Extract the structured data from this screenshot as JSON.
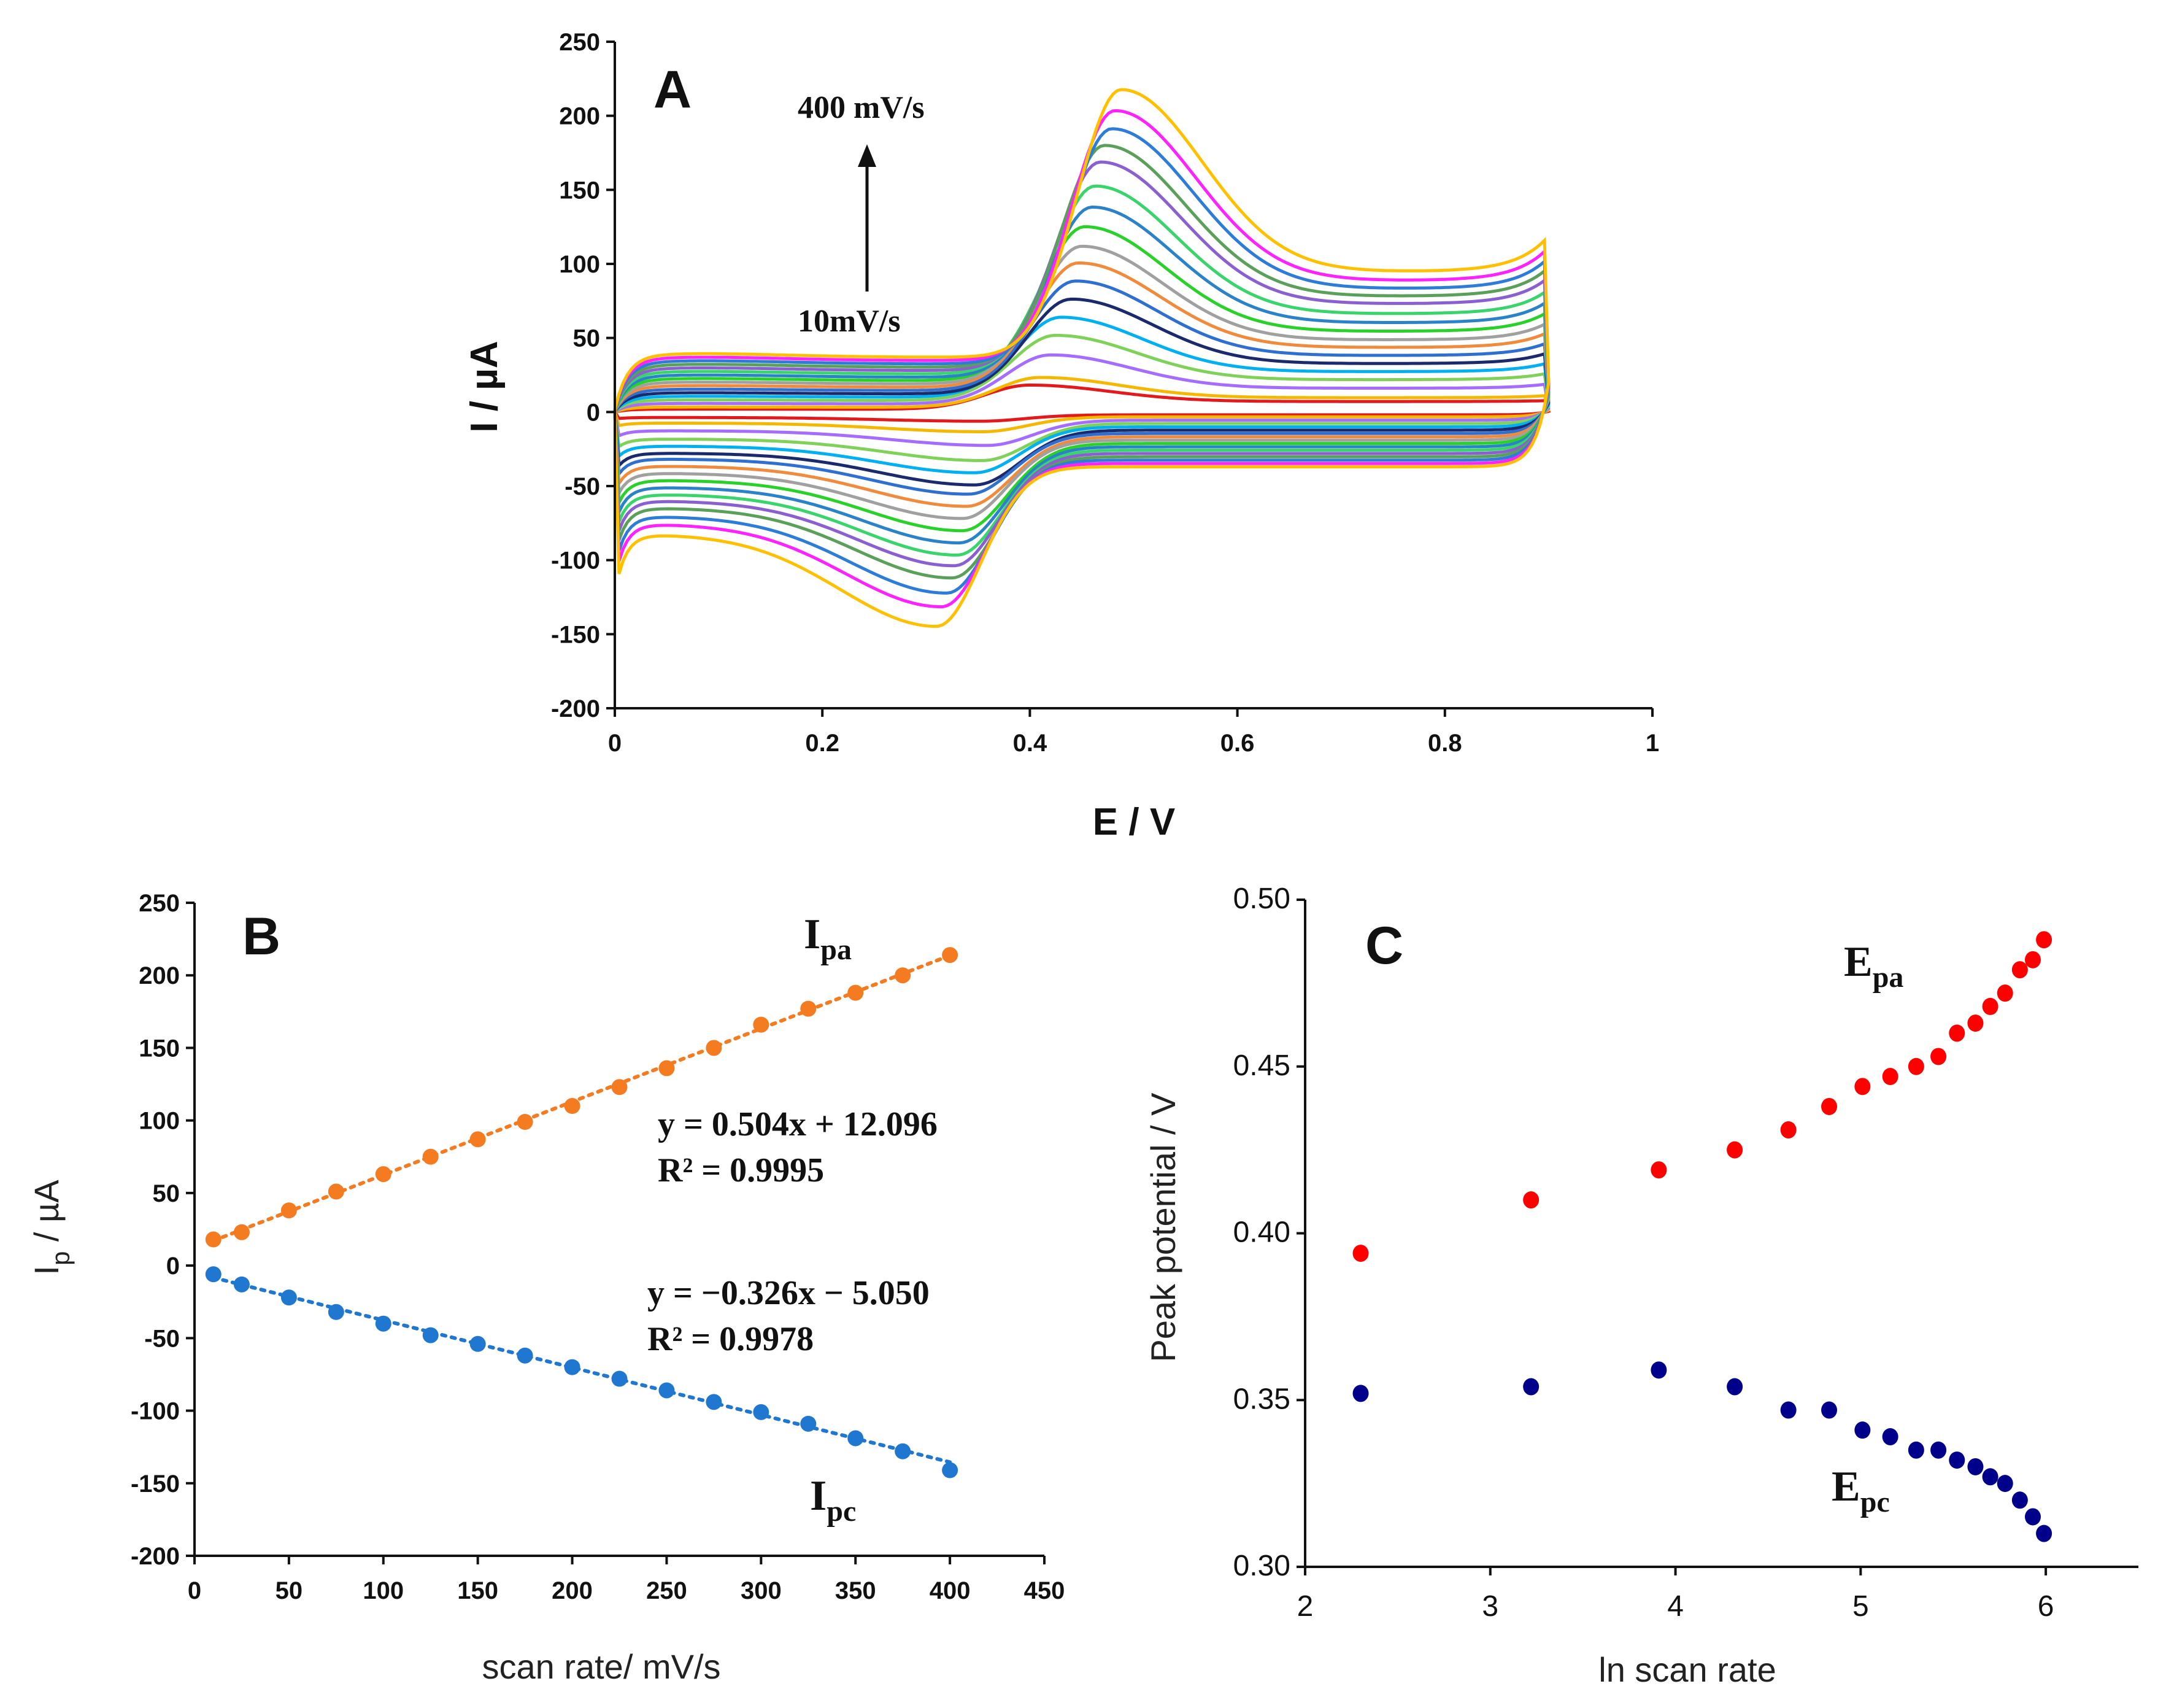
{
  "chart_data": [
    {
      "panel": "A",
      "type": "line",
      "xlabel": "E / V",
      "ylabel": "I / µA",
      "xlim": [
        0,
        1
      ],
      "ylim": [
        -200,
        250
      ],
      "xticks": [
        "0",
        "0.2",
        "0.4",
        "0.6",
        "0.8",
        "1"
      ],
      "yticks": [
        "250",
        "200",
        "150",
        "100",
        "50",
        "0",
        "-50",
        "-100",
        "-150",
        "-200"
      ],
      "annotations": {
        "top": "400 mV/s",
        "bottom": "10mV/s"
      },
      "scan_rates": [
        10,
        25,
        50,
        75,
        100,
        125,
        150,
        175,
        200,
        225,
        250,
        275,
        300,
        325,
        350,
        375,
        400
      ],
      "colors": [
        "#e31a1c",
        "#f5b800",
        "#a46cff",
        "#7fd15a",
        "#00b0f0",
        "#1a2a6c",
        "#2f6fd0",
        "#f08a3c",
        "#a0a0a0",
        "#2bd12b",
        "#2a82c8",
        "#3ad46c",
        "#8a60d0",
        "#5aa05a",
        "#2c7cd8",
        "#ff22ff",
        "#ffc000"
      ],
      "Ipa": [
        18,
        23,
        38,
        51,
        63,
        75,
        87,
        99,
        110,
        123,
        136,
        150,
        166,
        177,
        188,
        200,
        214
      ],
      "Ipc": [
        -6,
        -13,
        -22,
        -32,
        -40,
        -48,
        -54,
        -62,
        -70,
        -78,
        -86,
        -94,
        -101,
        -109,
        -119,
        -128,
        -141
      ],
      "Epa": [
        0.4,
        0.41,
        0.42,
        0.425,
        0.43,
        0.44,
        0.444,
        0.447,
        0.45,
        0.453,
        0.46,
        0.463,
        0.468,
        0.472,
        0.479,
        0.482,
        0.488
      ],
      "Epc": [
        0.352,
        0.354,
        0.359,
        0.354,
        0.347,
        0.347,
        0.341,
        0.339,
        0.335,
        0.335,
        0.332,
        0.33,
        0.327,
        0.325,
        0.32,
        0.315,
        0.31
      ],
      "grid": false
    },
    {
      "panel": "B",
      "type": "scatter",
      "xlabel": "scan rate/ mV/s",
      "ylabel_main": "I",
      "ylabel_sub": "p",
      "ylabel_unit": " / µA",
      "xlim": [
        0,
        450
      ],
      "ylim": [
        -200,
        250
      ],
      "xticks": [
        "0",
        "50",
        "100",
        "150",
        "200",
        "250",
        "300",
        "350",
        "400",
        "450"
      ],
      "yticks": [
        "250",
        "200",
        "150",
        "100",
        "50",
        "0",
        "-50",
        "-100",
        "-150",
        "-200"
      ],
      "x": [
        10,
        25,
        50,
        75,
        100,
        125,
        150,
        175,
        200,
        225,
        250,
        275,
        300,
        325,
        350,
        375,
        400
      ],
      "series": [
        {
          "name": "Ipa",
          "label_main": "I",
          "label_sub": "pa",
          "color": "#f47b20",
          "values": [
            18,
            23,
            38,
            51,
            63,
            75,
            87,
            99,
            110,
            123,
            136,
            150,
            166,
            177,
            188,
            200,
            214
          ],
          "fit": {
            "slope": 0.504,
            "intercept": 12.096,
            "equation": "y = 0.504x + 12.096",
            "r2": "R² = 0.9995"
          }
        },
        {
          "name": "Ipc",
          "label_main": "I",
          "label_sub": "pc",
          "color": "#1f77d0",
          "values": [
            -6,
            -13,
            -22,
            -32,
            -40,
            -48,
            -54,
            -62,
            -70,
            -78,
            -86,
            -94,
            -101,
            -109,
            -119,
            -128,
            -141
          ],
          "fit": {
            "slope": -0.326,
            "intercept": -5.05,
            "equation": "y = −0.326x − 5.050",
            "r2": "R² = 0.9978"
          }
        }
      ],
      "grid": false
    },
    {
      "panel": "C",
      "type": "scatter",
      "xlabel": "ln scan rate",
      "ylabel": "Peak potential / V",
      "xlim": [
        2,
        6.5
      ],
      "ylim": [
        0.3,
        0.5
      ],
      "xticks": [
        "2",
        "3",
        "4",
        "5",
        "6"
      ],
      "yticks": [
        "0.50",
        "0.45",
        "0.40",
        "0.35",
        "0.30"
      ],
      "x": [
        2.3,
        3.22,
        3.91,
        4.32,
        4.61,
        4.83,
        5.01,
        5.16,
        5.3,
        5.42,
        5.52,
        5.62,
        5.7,
        5.78,
        5.86,
        5.93,
        5.99
      ],
      "series": [
        {
          "name": "Epa",
          "label_main": "E",
          "label_sub": "pa",
          "color": "#ff0000",
          "values": [
            0.394,
            0.41,
            0.419,
            0.425,
            0.431,
            0.438,
            0.444,
            0.447,
            0.45,
            0.453,
            0.46,
            0.463,
            0.468,
            0.472,
            0.479,
            0.482,
            0.488
          ]
        },
        {
          "name": "Epc",
          "label_main": "E",
          "label_sub": "pc",
          "color": "#00008b",
          "values": [
            0.352,
            0.354,
            0.359,
            0.354,
            0.347,
            0.347,
            0.341,
            0.339,
            0.335,
            0.335,
            0.332,
            0.33,
            0.327,
            0.325,
            0.32,
            0.315,
            0.31
          ]
        }
      ],
      "grid": false
    }
  ]
}
